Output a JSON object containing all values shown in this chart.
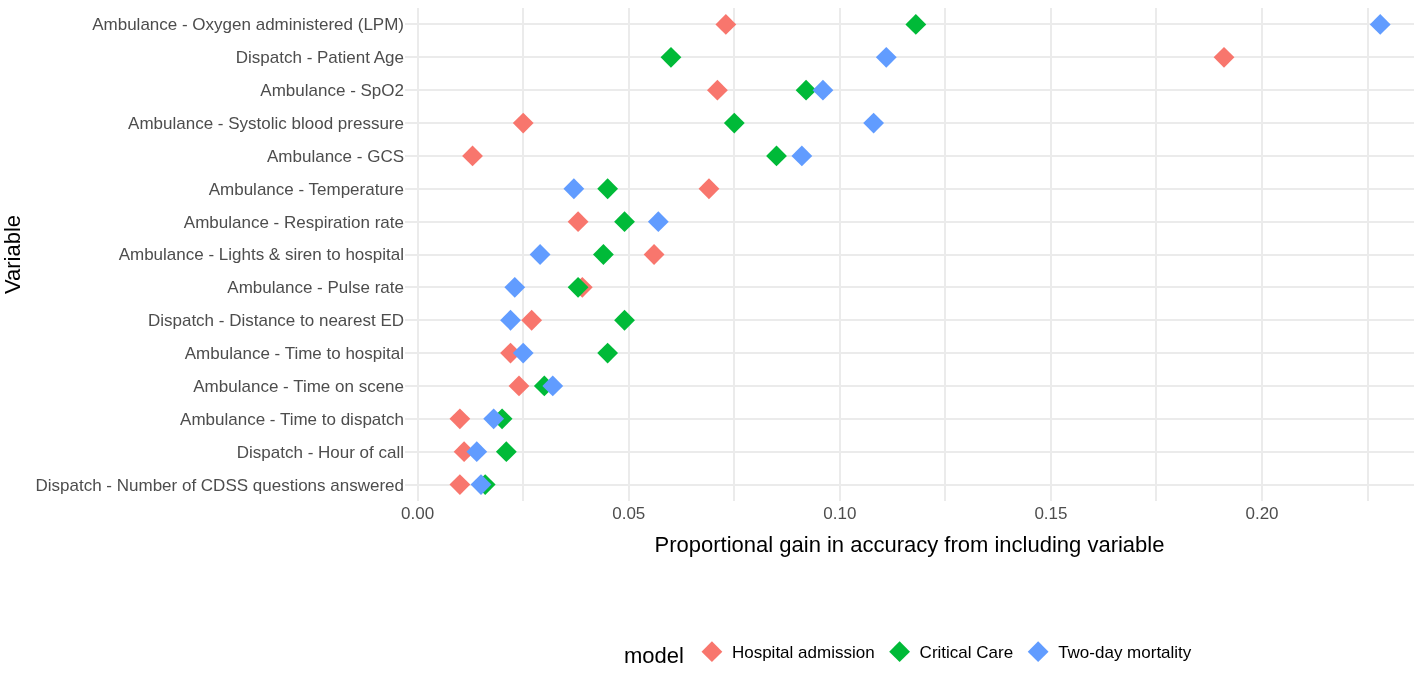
{
  "chart_data": {
    "type": "scatter",
    "xlabel": "Proportional gain in accuracy from including variable",
    "ylabel": "Variable",
    "legend_title": "model",
    "categories": [
      "Ambulance - Oxygen administered (LPM)",
      "Dispatch - Patient Age",
      "Ambulance - SpO2",
      "Ambulance - Systolic blood pressure",
      "Ambulance - GCS",
      "Ambulance - Temperature",
      "Ambulance - Respiration rate",
      "Ambulance - Lights & siren to hospital",
      "Ambulance - Pulse rate",
      "Dispatch - Distance to nearest ED",
      "Ambulance - Time to hospital",
      "Ambulance - Time on scene",
      "Ambulance - Time to dispatch",
      "Dispatch - Hour of call",
      "Dispatch - Number of CDSS questions answered"
    ],
    "orientation": "horizontal",
    "series": [
      {
        "name": "Hospital admission",
        "color": "#f8766d",
        "values": [
          0.073,
          0.191,
          0.071,
          0.025,
          0.013,
          0.069,
          0.038,
          0.056,
          0.039,
          0.027,
          0.022,
          0.024,
          0.01,
          0.011,
          0.01
        ]
      },
      {
        "name": "Critical Care",
        "color": "#00ba38",
        "values": [
          0.118,
          0.06,
          0.092,
          0.075,
          0.085,
          0.045,
          0.049,
          0.044,
          0.038,
          0.049,
          0.045,
          0.03,
          0.02,
          0.021,
          0.016
        ]
      },
      {
        "name": "Two-day mortality",
        "color": "#619cff",
        "values": [
          0.228,
          0.111,
          0.096,
          0.108,
          0.091,
          0.037,
          0.057,
          0.029,
          0.023,
          0.022,
          0.025,
          0.032,
          0.018,
          0.014,
          0.015
        ]
      }
    ],
    "xlim": [
      -0.003,
      0.236
    ],
    "xticks": [
      "0.00",
      {
        "value": 0.025,
        "label": null
      },
      {
        "value": 0.05,
        "label": "0.05"
      },
      {
        "value": 0.075,
        "label": null
      },
      {
        "value": 0.1,
        "label": "0.10"
      },
      {
        "value": 0.125,
        "label": null
      },
      {
        "value": 0.15,
        "label": "0.15"
      },
      {
        "value": 0.175,
        "label": null
      },
      {
        "value": 0.2,
        "label": "0.20"
      },
      {
        "value": 0.225,
        "label": null
      }
    ],
    "grid": true,
    "legend": "bottom",
    "marker": "diamond"
  }
}
